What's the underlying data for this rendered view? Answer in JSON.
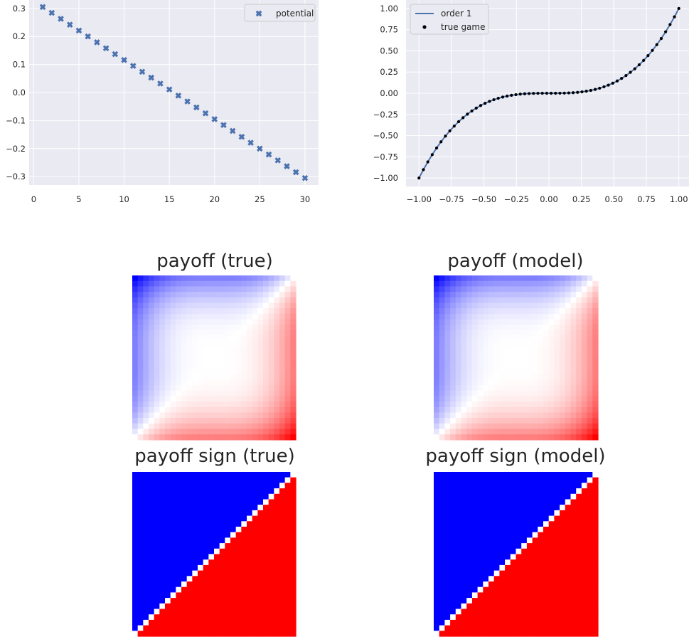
{
  "chart_data": [
    {
      "type": "scatter",
      "title": "",
      "xlabel": "",
      "ylabel": "",
      "xlim": [
        -0.5,
        31.5
      ],
      "ylim": [
        -0.33,
        0.33
      ],
      "xticks": [
        0,
        5,
        10,
        15,
        20,
        25,
        30
      ],
      "xtick_labels": [
        "0",
        "5",
        "10",
        "15",
        "20",
        "25",
        "30"
      ],
      "yticks": [
        0.3,
        0.2,
        0.1,
        0.0,
        -0.1,
        -0.2,
        -0.3
      ],
      "ytick_labels": [
        "0.3",
        "0.2",
        "0.1",
        "0.0",
        "−0.1",
        "−0.2",
        "−0.3"
      ],
      "grid": true,
      "legend_position": "top-right",
      "series": [
        {
          "name": "potential",
          "marker": "x-filled",
          "color": "#4c72b0",
          "x": [
            1,
            2,
            3,
            4,
            5,
            6,
            7,
            8,
            9,
            10,
            11,
            12,
            13,
            14,
            15,
            16,
            17,
            18,
            19,
            20,
            21,
            22,
            23,
            24,
            25,
            26,
            27,
            28,
            29,
            30
          ],
          "y": [
            0.305,
            0.284,
            0.263,
            0.242,
            0.221,
            0.2,
            0.179,
            0.158,
            0.137,
            0.116,
            0.095,
            0.074,
            0.053,
            0.032,
            0.011,
            -0.011,
            -0.032,
            -0.053,
            -0.074,
            -0.095,
            -0.116,
            -0.137,
            -0.158,
            -0.179,
            -0.2,
            -0.221,
            -0.242,
            -0.263,
            -0.284,
            -0.305
          ]
        }
      ]
    },
    {
      "type": "line",
      "title": "",
      "xlabel": "",
      "ylabel": "",
      "xlim": [
        -1.1,
        1.1
      ],
      "ylim": [
        -1.1,
        1.1
      ],
      "xticks": [
        -1.0,
        -0.75,
        -0.5,
        -0.25,
        0.0,
        0.25,
        0.5,
        0.75,
        1.0
      ],
      "xtick_labels": [
        "−1.00",
        "−0.75",
        "−0.50",
        "−0.25",
        "0.00",
        "0.25",
        "0.50",
        "0.75",
        "1.00"
      ],
      "yticks": [
        1.0,
        0.75,
        0.5,
        0.25,
        0.0,
        -0.25,
        -0.5,
        -0.75,
        -1.0
      ],
      "ytick_labels": [
        "1.00",
        "0.75",
        "0.50",
        "0.25",
        "0.00",
        "−0.25",
        "−0.50",
        "−0.75",
        "−1.00"
      ],
      "grid": true,
      "legend_position": "top-left",
      "function": "y = x^3",
      "n_points": 60,
      "series": [
        {
          "name": "order 1",
          "kind": "line",
          "color": "#4c72b0"
        },
        {
          "name": "true game",
          "kind": "points",
          "color": "#000000"
        }
      ]
    },
    {
      "type": "heatmap",
      "title": "payoff (true)",
      "grid_size": 30,
      "formula": "v(i,j) = (j^3 - i^3)/2, i = row value top 1 to bottom -1, j = column value left -1 to right 1",
      "colormap": "bwr",
      "color_low": "#0000ff",
      "color_mid": "#ffffff",
      "color_high": "#ff0000"
    },
    {
      "type": "heatmap",
      "title": "payoff (model)",
      "grid_size": 30,
      "formula": "v(i,j) = (j^3 - i^3)/2, i = row value top 1 to bottom -1, j = column value left -1 to right 1",
      "colormap": "bwr",
      "color_low": "#0000ff",
      "color_mid": "#ffffff",
      "color_high": "#ff0000"
    },
    {
      "type": "heatmap",
      "title": "payoff sign (true)",
      "grid_size": 30,
      "formula": "sign(v(i,j))",
      "colormap": "bwr",
      "color_low": "#0000ff",
      "color_mid": "#ffffff",
      "color_high": "#ff0000"
    },
    {
      "type": "heatmap",
      "title": "payoff sign (model)",
      "grid_size": 30,
      "formula": "sign(v(i,j))",
      "colormap": "bwr",
      "color_low": "#0000ff",
      "color_mid": "#ffffff",
      "color_high": "#ff0000"
    }
  ],
  "colors": {
    "axes_face": "#eaeaf2",
    "grid": "#ffffff",
    "tick_text": "#262626",
    "legend_face": "#eaeaf2",
    "legend_edge": "#cccccc"
  }
}
